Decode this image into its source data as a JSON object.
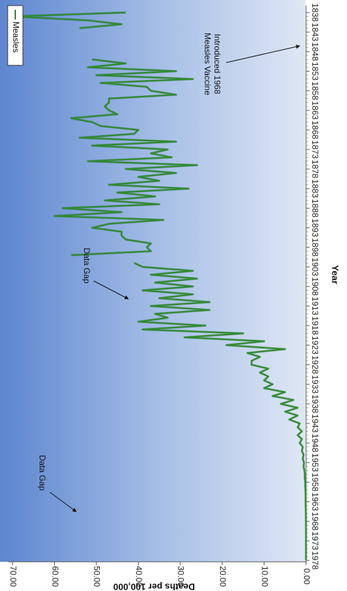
{
  "chart_data": {
    "type": "line",
    "orientation": "rotated-90-clockwise",
    "xlabel": "Year",
    "ylabel": "Deaths per 100,000",
    "xlim": [
      1838,
      1978
    ],
    "ylim": [
      0,
      72
    ],
    "x_ticks": [
      "1838",
      "1843",
      "1848",
      "1853",
      "1858",
      "1863",
      "1868",
      "1873",
      "1878",
      "1883",
      "1888",
      "1893",
      "1898",
      "1903",
      "1908",
      "1913",
      "1918",
      "1923",
      "1928",
      "1933",
      "1938",
      "1943",
      "1948",
      "1953",
      "1958",
      "1963",
      "1968",
      "1973",
      "1978"
    ],
    "y_ticks": [
      "0.00",
      "10.00",
      "20.00",
      "30.00",
      "40.00",
      "50.00",
      "60.00",
      "70.00"
    ],
    "grid": false,
    "legend": {
      "position": "top-right",
      "entries": [
        "Measles"
      ]
    },
    "series": [
      {
        "name": "Measles",
        "color": "#2e8b2e",
        "segments": [
          {
            "x": [
              1838,
              1839,
              1840,
              1841,
              1842
            ],
            "y": [
              43,
              70,
              52,
              44,
              54
            ]
          },
          {
            "x": [
              1850,
              1851,
              1852,
              1853,
              1854,
              1855,
              1856,
              1857,
              1858,
              1859,
              1860,
              1861,
              1862,
              1863,
              1864,
              1865,
              1866,
              1867,
              1868,
              1869,
              1870,
              1871,
              1872,
              1873,
              1874,
              1875,
              1876,
              1877,
              1878,
              1879,
              1880,
              1881,
              1882,
              1883,
              1884,
              1885,
              1886,
              1887,
              1888,
              1889,
              1890,
              1891,
              1892,
              1893,
              1894,
              1895,
              1896,
              1897,
              1898,
              1899,
              1900
            ],
            "y": [
              51,
              43,
              52,
              31,
              50,
              27,
              49,
              38,
              37,
              31,
              47,
              47,
              48,
              47,
              45,
              56,
              51,
              49,
              40,
              41,
              54,
              31,
              51,
              33,
              37,
              32,
              52,
              26,
              43,
              31,
              40,
              35,
              47,
              28,
              45,
              36,
              48,
              35,
              58,
              44,
              60,
              34,
              47,
              51,
              44,
              44,
              43,
              37,
              38,
              37,
              56
            ]
          },
          {
            "x": [
              1902,
              1903,
              1904,
              1905,
              1906,
              1907,
              1908,
              1909,
              1910,
              1911,
              1912,
              1913,
              1914,
              1915,
              1916,
              1917,
              1918,
              1919,
              1920,
              1921,
              1922,
              1923,
              1924,
              1925,
              1926,
              1927,
              1928,
              1929,
              1930,
              1931,
              1932,
              1933,
              1934,
              1935,
              1936,
              1937,
              1938,
              1939,
              1940,
              1941,
              1942,
              1943,
              1944,
              1945,
              1946,
              1947,
              1948,
              1949,
              1950,
              1951,
              1952,
              1953,
              1954,
              1955,
              1956,
              1957,
              1958,
              1959,
              1960,
              1961,
              1962,
              1963,
              1964,
              1965,
              1966,
              1967,
              1968,
              1969,
              1970,
              1971,
              1972,
              1973,
              1974,
              1975,
              1976,
              1977,
              1978
            ],
            "y": [
              41,
              39,
              27,
              37,
              26,
              36,
              27,
              39,
              27,
              35,
              23,
              37,
              23,
              36,
              33,
              40,
              24,
              39,
              15,
              29,
              10,
              19,
              5,
              14,
              11,
              13,
              13,
              9,
              11,
              9,
              10,
              8,
              10,
              5,
              8,
              3,
              6,
              2,
              5,
              2,
              4,
              1.5,
              2,
              1,
              2,
              1,
              1.5,
              0.8,
              1,
              0.6,
              0.8,
              0.5,
              0.6,
              0.4,
              0.3,
              0.3,
              0.2,
              0.2,
              0.15,
              0.1,
              0.1,
              0.1,
              0.1,
              0.05,
              0.05,
              0.03,
              0.03,
              0.02,
              0.02,
              0.01,
              0.01,
              0.01,
              0.01,
              0.01,
              0.01,
              0.01,
              0.01
            ]
          }
        ]
      }
    ],
    "annotations": [
      {
        "lines": [
          "Data Gap"
        ],
        "target": {
          "x": 1845,
          "y": 55
        }
      },
      {
        "lines": [
          "Data Gap"
        ],
        "target": {
          "x": 1901,
          "y": 41
        }
      },
      {
        "lines": [
          "Measles Vaccine",
          "Introduced 1968"
        ],
        "target": {
          "x": 1968,
          "y": 0.5
        }
      }
    ]
  }
}
